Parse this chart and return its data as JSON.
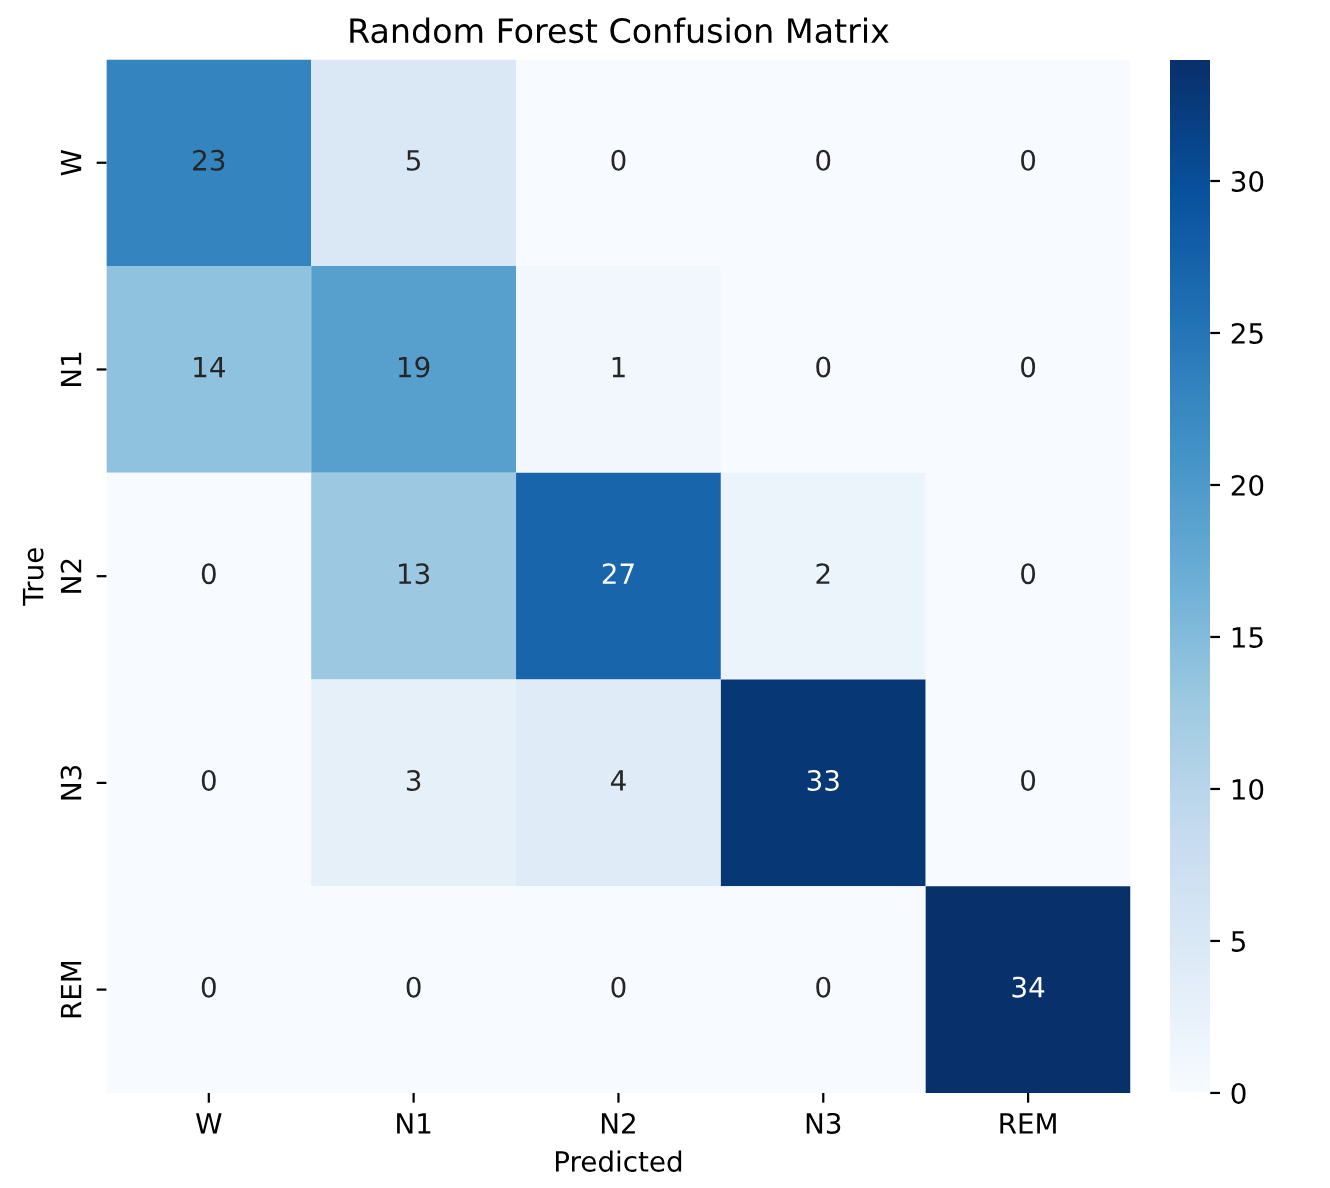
{
  "chart_data": {
    "type": "heatmap",
    "title": "Random Forest Confusion Matrix",
    "xlabel": "Predicted",
    "ylabel": "True",
    "categories": [
      "W",
      "N1",
      "N2",
      "N3",
      "REM"
    ],
    "y_categories": [
      "W",
      "N1",
      "N2",
      "N3",
      "REM"
    ],
    "cells": [
      [
        23,
        5,
        0,
        0,
        0
      ],
      [
        14,
        19,
        1,
        0,
        0
      ],
      [
        0,
        13,
        27,
        2,
        0
      ],
      [
        0,
        3,
        4,
        33,
        0
      ],
      [
        0,
        0,
        0,
        0,
        34
      ]
    ],
    "data_labels": true,
    "clim": [
      0,
      34
    ],
    "cticks": [
      0,
      5,
      10,
      15,
      20,
      25,
      30
    ]
  }
}
